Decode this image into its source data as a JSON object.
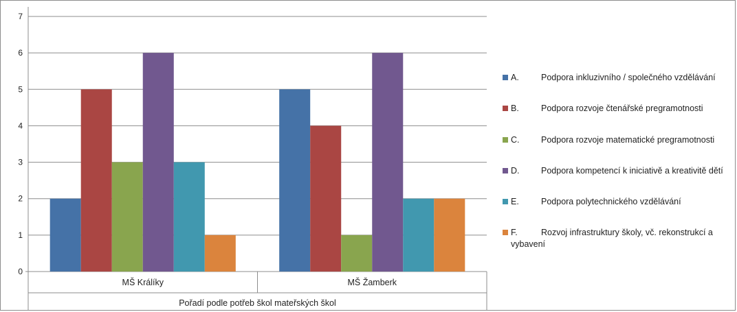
{
  "chart_data": {
    "type": "bar",
    "categories": [
      "MŠ Králíky",
      "MŠ Žamberk"
    ],
    "group_axis_label": "Pořadí podle potřeb škol mateřských škol",
    "ylim": [
      0,
      7
    ],
    "yticks": [
      "0",
      "1",
      "2",
      "3",
      "4",
      "5",
      "6",
      "7"
    ],
    "grid": true,
    "legend_position": "right",
    "series": [
      {
        "name": "A. Podpora inkluzivního / společného vzdělávání",
        "letter": "A.",
        "label": "Podpora inkluzivního / společného vzdělávání",
        "color": "#4572A7",
        "values": [
          2,
          5
        ]
      },
      {
        "name": "B. Podpora rozvoje čtenářské pregramotnosti",
        "letter": "B.",
        "label": "Podpora rozvoje čtenářské pregramotnosti",
        "color": "#AA4643",
        "values": [
          5,
          4
        ]
      },
      {
        "name": "C. Podpora rozvoje matematické pregramotnosti",
        "letter": "C.",
        "label": "Podpora rozvoje matematické pregramotnosti",
        "color": "#89A54E",
        "values": [
          3,
          1
        ]
      },
      {
        "name": "D. Podpora kompetencí k iniciativě a kreativitě dětí",
        "letter": "D.",
        "label": "Podpora kompetencí k iniciativě a kreativitě dětí",
        "color": "#71588F",
        "values": [
          6,
          6
        ]
      },
      {
        "name": "E. Podpora polytechnického vzdělávání",
        "letter": "E.",
        "label": "Podpora polytechnického vzdělávání",
        "color": "#4198AF",
        "values": [
          3,
          2
        ]
      },
      {
        "name": "F. Rozvoj infrastruktury školy, vč. rekonstrukcí a vybavení",
        "letter": "F.",
        "label": "Rozvoj infrastruktury školy, vč. rekonstrukcí a vybavení",
        "color": "#DB843D",
        "values": [
          1,
          2
        ]
      }
    ]
  }
}
